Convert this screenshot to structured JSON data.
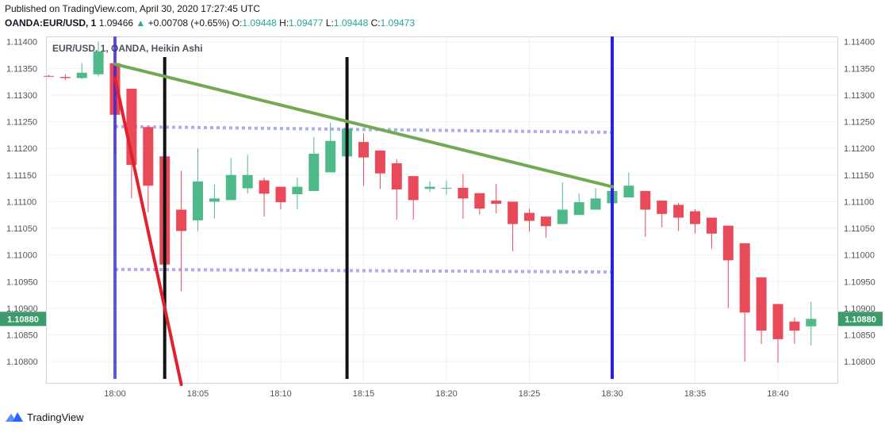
{
  "header": {
    "published": "Published on TradingView.com, April 30, 2020 17:27:45 UTC",
    "symbol": "OANDA:EUR/USD, 1",
    "last": "1.09466",
    "change": "+0.00708 (+0.65%)",
    "o_label": "O:",
    "o_value": "1.09448",
    "h_label": "H:",
    "h_value": "1.09477",
    "l_label": "L:",
    "l_value": "1.09448",
    "c_label": "C:",
    "c_value": "1.09473"
  },
  "footer": {
    "brand": "TradingView"
  },
  "colors": {
    "up": "#4fb98a",
    "down": "#e94a5a",
    "trend": "#72a955",
    "support": "#a9aef5",
    "blue": "#2323e0",
    "black": "#111111",
    "red": "#e3202e",
    "grid": "#eef0f3",
    "price_tag": "#3d9a6b"
  },
  "chart_data": {
    "type": "candlestick",
    "title": "EUR/USD, 1, OANDA, Heikin Ashi",
    "ylim": [
      1.1076,
      1.1141
    ],
    "y_ticks": [
      "1.11400",
      "1.11350",
      "1.11300",
      "1.11250",
      "1.11200",
      "1.11150",
      "1.11100",
      "1.11050",
      "1.11000",
      "1.10950",
      "1.10900",
      "1.10850",
      "1.10800"
    ],
    "x_ticks": [
      {
        "label": "18:00",
        "bar": 0
      },
      {
        "label": "18:05",
        "bar": 5
      },
      {
        "label": "18:10",
        "bar": 10
      },
      {
        "label": "18:15",
        "bar": 15
      },
      {
        "label": "18:20",
        "bar": 20
      },
      {
        "label": "18:25",
        "bar": 25
      },
      {
        "label": "18:30",
        "bar": 30
      },
      {
        "label": "18:35",
        "bar": 35
      },
      {
        "label": "18:40",
        "bar": 40
      }
    ],
    "current_price": "1.10880",
    "candles": [
      {
        "bar": -4,
        "o": 1.11336,
        "h": 1.11338,
        "l": 1.11334,
        "c": 1.11335
      },
      {
        "bar": -3,
        "o": 1.11334,
        "h": 1.11339,
        "l": 1.11328,
        "c": 1.11332
      },
      {
        "bar": -2,
        "o": 1.11332,
        "h": 1.1136,
        "l": 1.1133,
        "c": 1.11342
      },
      {
        "bar": -1,
        "o": 1.11339,
        "h": 1.114,
        "l": 1.11335,
        "c": 1.11382
      },
      {
        "bar": 0,
        "o": 1.1136,
        "h": 1.11405,
        "l": 1.1119,
        "c": 1.11263
      },
      {
        "bar": 1,
        "o": 1.11312,
        "h": 1.11312,
        "l": 1.11106,
        "c": 1.11169
      },
      {
        "bar": 2,
        "o": 1.1124,
        "h": 1.1124,
        "l": 1.1108,
        "c": 1.1113
      },
      {
        "bar": 3,
        "o": 1.11185,
        "h": 1.11185,
        "l": 1.10875,
        "c": 1.10982
      },
      {
        "bar": 4,
        "o": 1.11085,
        "h": 1.11158,
        "l": 1.10932,
        "c": 1.11045
      },
      {
        "bar": 5,
        "o": 1.11065,
        "h": 1.112,
        "l": 1.11045,
        "c": 1.11138
      },
      {
        "bar": 6,
        "o": 1.111,
        "h": 1.11132,
        "l": 1.11068,
        "c": 1.11106
      },
      {
        "bar": 7,
        "o": 1.11103,
        "h": 1.11182,
        "l": 1.11103,
        "c": 1.1115
      },
      {
        "bar": 8,
        "o": 1.11125,
        "h": 1.11188,
        "l": 1.11115,
        "c": 1.1115
      },
      {
        "bar": 9,
        "o": 1.1114,
        "h": 1.11145,
        "l": 1.11072,
        "c": 1.11115
      },
      {
        "bar": 10,
        "o": 1.11128,
        "h": 1.11128,
        "l": 1.11086,
        "c": 1.11099
      },
      {
        "bar": 11,
        "o": 1.11114,
        "h": 1.11145,
        "l": 1.11086,
        "c": 1.11128
      },
      {
        "bar": 12,
        "o": 1.1112,
        "h": 1.11221,
        "l": 1.1112,
        "c": 1.1119
      },
      {
        "bar": 13,
        "o": 1.11155,
        "h": 1.11248,
        "l": 1.11155,
        "c": 1.11214
      },
      {
        "bar": 14,
        "o": 1.11185,
        "h": 1.11278,
        "l": 1.11185,
        "c": 1.11237
      },
      {
        "bar": 15,
        "o": 1.11212,
        "h": 1.11228,
        "l": 1.1113,
        "c": 1.11183
      },
      {
        "bar": 16,
        "o": 1.11196,
        "h": 1.11196,
        "l": 1.11124,
        "c": 1.11153
      },
      {
        "bar": 17,
        "o": 1.11172,
        "h": 1.1118,
        "l": 1.11066,
        "c": 1.11123
      },
      {
        "bar": 18,
        "o": 1.11148,
        "h": 1.11148,
        "l": 1.11066,
        "c": 1.11103
      },
      {
        "bar": 19,
        "o": 1.11124,
        "h": 1.11138,
        "l": 1.11118,
        "c": 1.11128
      },
      {
        "bar": 20,
        "o": 1.11126,
        "h": 1.1114,
        "l": 1.11113,
        "c": 1.11126
      },
      {
        "bar": 21,
        "o": 1.11126,
        "h": 1.11152,
        "l": 1.11068,
        "c": 1.11106
      },
      {
        "bar": 22,
        "o": 1.11116,
        "h": 1.11116,
        "l": 1.11076,
        "c": 1.11087
      },
      {
        "bar": 23,
        "o": 1.11102,
        "h": 1.11133,
        "l": 1.11078,
        "c": 1.11096
      },
      {
        "bar": 24,
        "o": 1.111,
        "h": 1.111,
        "l": 1.11007,
        "c": 1.11058
      },
      {
        "bar": 25,
        "o": 1.11079,
        "h": 1.11087,
        "l": 1.11044,
        "c": 1.11064
      },
      {
        "bar": 26,
        "o": 1.11072,
        "h": 1.11072,
        "l": 1.11032,
        "c": 1.11054
      },
      {
        "bar": 27,
        "o": 1.11058,
        "h": 1.11136,
        "l": 1.11058,
        "c": 1.11085
      },
      {
        "bar": 28,
        "o": 1.11075,
        "h": 1.11115,
        "l": 1.11075,
        "c": 1.11099
      },
      {
        "bar": 29,
        "o": 1.11085,
        "h": 1.11125,
        "l": 1.11085,
        "c": 1.11106
      },
      {
        "bar": 30,
        "o": 1.11097,
        "h": 1.11153,
        "l": 1.11097,
        "c": 1.1112
      },
      {
        "bar": 31,
        "o": 1.11108,
        "h": 1.11155,
        "l": 1.11108,
        "c": 1.1113
      },
      {
        "bar": 32,
        "o": 1.1112,
        "h": 1.1112,
        "l": 1.11034,
        "c": 1.11085
      },
      {
        "bar": 33,
        "o": 1.11102,
        "h": 1.11102,
        "l": 1.11052,
        "c": 1.11077
      },
      {
        "bar": 34,
        "o": 1.11094,
        "h": 1.11098,
        "l": 1.11045,
        "c": 1.1107
      },
      {
        "bar": 35,
        "o": 1.11082,
        "h": 1.11086,
        "l": 1.1104,
        "c": 1.11058
      },
      {
        "bar": 36,
        "o": 1.1107,
        "h": 1.1107,
        "l": 1.11012,
        "c": 1.1104
      },
      {
        "bar": 37,
        "o": 1.11055,
        "h": 1.11055,
        "l": 1.109,
        "c": 1.1099
      },
      {
        "bar": 38,
        "o": 1.11022,
        "h": 1.11022,
        "l": 1.108,
        "c": 1.10892
      },
      {
        "bar": 39,
        "o": 1.10958,
        "h": 1.10958,
        "l": 1.10833,
        "c": 1.10858
      },
      {
        "bar": 40,
        "o": 1.10908,
        "h": 1.10908,
        "l": 1.10798,
        "c": 1.10842
      },
      {
        "bar": 41,
        "o": 1.10875,
        "h": 1.10883,
        "l": 1.10833,
        "c": 1.10858
      },
      {
        "bar": 42,
        "o": 1.10866,
        "h": 1.10912,
        "l": 1.1083,
        "c": 1.1088
      }
    ],
    "drawings": {
      "vertical_lines": [
        {
          "bar": 0,
          "color": "blue"
        },
        {
          "bar": 3,
          "color": "black"
        },
        {
          "bar": 14,
          "color": "black"
        },
        {
          "bar": 30,
          "color": "blue"
        }
      ],
      "trendlines": [
        {
          "from": {
            "bar": 0,
            "price": 1.11358
          },
          "to": {
            "bar": 30,
            "price": 1.11128
          },
          "color": "trend"
        },
        {
          "from": {
            "bar": 0,
            "price": 1.11332
          },
          "to": {
            "bar": 4,
            "price": 1.10757
          },
          "color": "red"
        }
      ],
      "dotted_levels": [
        {
          "from_bar": 0,
          "to_bar": 30,
          "from_price": 1.11241,
          "to_price": 1.1123
        },
        {
          "from_bar": 0,
          "to_bar": 30,
          "from_price": 1.10973,
          "to_price": 1.10968
        }
      ]
    }
  }
}
